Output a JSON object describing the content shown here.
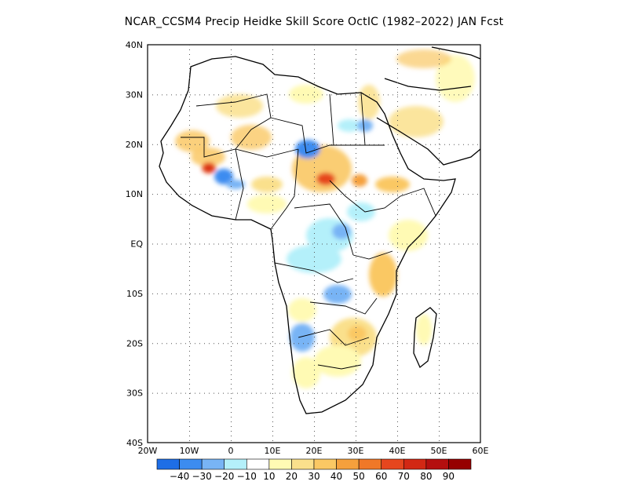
{
  "title": "NCAR_CCSM4 Precip Heidke Skill Score OctIC (1982–2022) JAN Fcst",
  "axes": {
    "lat_ticks": [
      "40N",
      "30N",
      "20N",
      "10N",
      "EQ",
      "10S",
      "20S",
      "30S",
      "40S"
    ],
    "lon_ticks": [
      "20W",
      "10W",
      "0",
      "10E",
      "20E",
      "30E",
      "40E",
      "50E",
      "60E"
    ]
  },
  "colorbar": {
    "labels": [
      "−40",
      "−30",
      "−20",
      "−10",
      "10",
      "20",
      "30",
      "40",
      "50",
      "60",
      "70",
      "80",
      "90"
    ],
    "colors": [
      "#1e6ee6",
      "#3c8cf0",
      "#78b4f5",
      "#b4f0fa",
      "#ffffff",
      "#fffab4",
      "#fae08c",
      "#fac864",
      "#f5a03c",
      "#f07828",
      "#e6461e",
      "#d22814",
      "#b40f0f",
      "#960000"
    ]
  },
  "map": {
    "region": "Africa",
    "lat_range": [
      -40,
      40
    ],
    "lon_range": [
      -20,
      60
    ],
    "colors": {
      "land_outline": "#000000",
      "border": "#000000",
      "frame": "#000000"
    }
  }
}
